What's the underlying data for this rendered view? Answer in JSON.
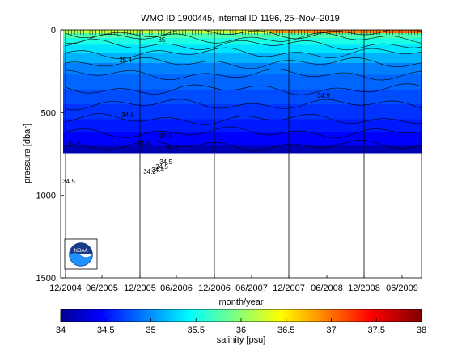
{
  "chart_data": {
    "type": "heatmap",
    "title": "WMO ID 1900445, internal ID 1196, 25–Nov–2019",
    "xlabel": "month/year",
    "ylabel": "pressure [dbar]",
    "colorbar_label": "salinity [psu]",
    "x_ticks": [
      "12/2004",
      "06/2005",
      "12/2005",
      "06/2006",
      "12/2006",
      "06/2007",
      "12/2007",
      "06/2008",
      "12/2008",
      "06/2009"
    ],
    "y_ticks": [
      0,
      500,
      1000,
      1500
    ],
    "ylim": [
      1500,
      0
    ],
    "colorbar_ticks": [
      "34",
      "34.5",
      "35",
      "35.5",
      "36",
      "36.5",
      "37",
      "37.5",
      "38"
    ],
    "colorbar_range": [
      34,
      38
    ],
    "vertical_year_lines": [
      "12/2004",
      "12/2005",
      "12/2006",
      "12/2007",
      "12/2008"
    ],
    "surface_salinity_profile": [
      {
        "x": "12/2004",
        "salinity": 36.2
      },
      {
        "x": "06/2005",
        "salinity": 36.3
      },
      {
        "x": "12/2005",
        "salinity": 36.3
      },
      {
        "x": "06/2006",
        "salinity": 36.2
      },
      {
        "x": "12/2006",
        "salinity": 36.3
      },
      {
        "x": "06/2007",
        "salinity": 36.4
      },
      {
        "x": "12/2007",
        "salinity": 36.9
      },
      {
        "x": "06/2008",
        "salinity": 37.0
      },
      {
        "x": "12/2008",
        "salinity": 37.0
      },
      {
        "x": "06/2009",
        "salinity": 37.1
      }
    ],
    "isohaline_depths_dbar": [
      {
        "salinity": 36.0,
        "depth": 20
      },
      {
        "salinity": 35.8,
        "depth": 50
      },
      {
        "salinity": 35.6,
        "depth": 90
      },
      {
        "salinity": 35.4,
        "depth": 140
      },
      {
        "salinity": 35.2,
        "depth": 200
      },
      {
        "salinity": 35.0,
        "depth": 270
      },
      {
        "salinity": 34.9,
        "depth": 360
      },
      {
        "salinity": 34.8,
        "depth": 450
      },
      {
        "salinity": 34.7,
        "depth": 540
      },
      {
        "salinity": 34.6,
        "depth": 620
      },
      {
        "salinity": 34.5,
        "depth": 700
      }
    ],
    "max_profile_depth_dbar": 750,
    "contour_labels": [
      "35",
      "35.4",
      "34.9",
      "34.6",
      "34.6",
      "34.4",
      "34.5",
      "34.4",
      "34.5",
      "34.2",
      "34.5",
      "34.4",
      "34.5"
    ],
    "logo_text": "NOAA"
  }
}
